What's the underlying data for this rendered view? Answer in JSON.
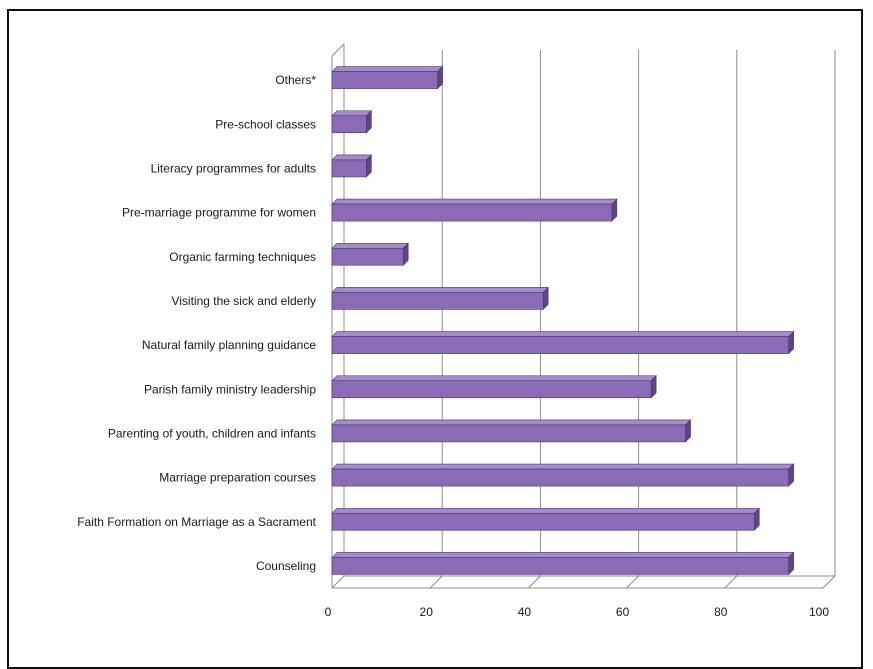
{
  "chart_data": {
    "type": "bar",
    "orientation": "horizontal",
    "style": "3d",
    "categories": [
      "Counseling",
      "Faith Formation on Marriage as a Sacrament",
      "Marriage preparation courses",
      "Parenting of youth, children and infants",
      "Parish family ministry leadership",
      "Natural family planning guidance",
      "Visiting the sick and elderly",
      "Organic farming techniques",
      "Pre-marriage programme for women",
      "Literacy programmes for adults",
      "Pre-school classes",
      "Others*"
    ],
    "values": [
      93,
      86,
      93,
      72,
      65,
      93,
      43,
      14.5,
      57,
      7,
      7,
      21.5
    ],
    "xlim": [
      0,
      100
    ],
    "xticks": [
      0,
      20,
      40,
      60,
      80,
      100
    ],
    "grid": true,
    "legend": "none",
    "colors": {
      "bar_front": "#8B6BB5",
      "bar_top": "#A58BC9",
      "bar_side": "#5E4587",
      "bar_edge": "#4A356E",
      "grid": "#8c8c8c",
      "text": "#1a1a1a"
    }
  }
}
